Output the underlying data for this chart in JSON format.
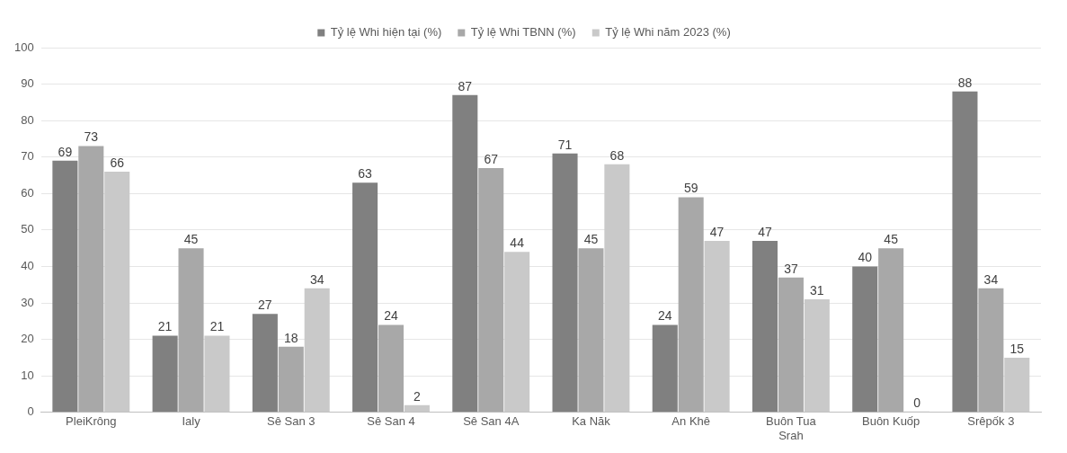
{
  "chart_data": {
    "type": "bar",
    "categories": [
      "PleiKrông",
      "Ialy",
      "Sê San 3",
      "Sê San 4",
      "Sê San 4A",
      "Ka Năk",
      "An Khê",
      "Buôn Tua Srah",
      "Buôn Kuốp",
      "Srêpốk 3"
    ],
    "series": [
      {
        "name": "Tỷ lệ Whi hiện tại (%)",
        "color": "#808080",
        "values": [
          69,
          21,
          27,
          63,
          87,
          71,
          24,
          47,
          40,
          88
        ]
      },
      {
        "name": "Tỷ lệ Whi TBNN (%)",
        "color": "#a8a8a8",
        "values": [
          73,
          45,
          18,
          24,
          67,
          45,
          59,
          37,
          45,
          34
        ]
      },
      {
        "name": "Tỷ lệ Whi năm 2023 (%)",
        "color": "#c9c9c9",
        "values": [
          66,
          21,
          34,
          2,
          44,
          68,
          47,
          31,
          0,
          15
        ]
      }
    ],
    "ylim": [
      0,
      100
    ],
    "yticks": [
      0,
      10,
      20,
      30,
      40,
      50,
      60,
      70,
      80,
      90,
      100
    ],
    "grid": "y",
    "legend": "top",
    "data_labels": true
  }
}
